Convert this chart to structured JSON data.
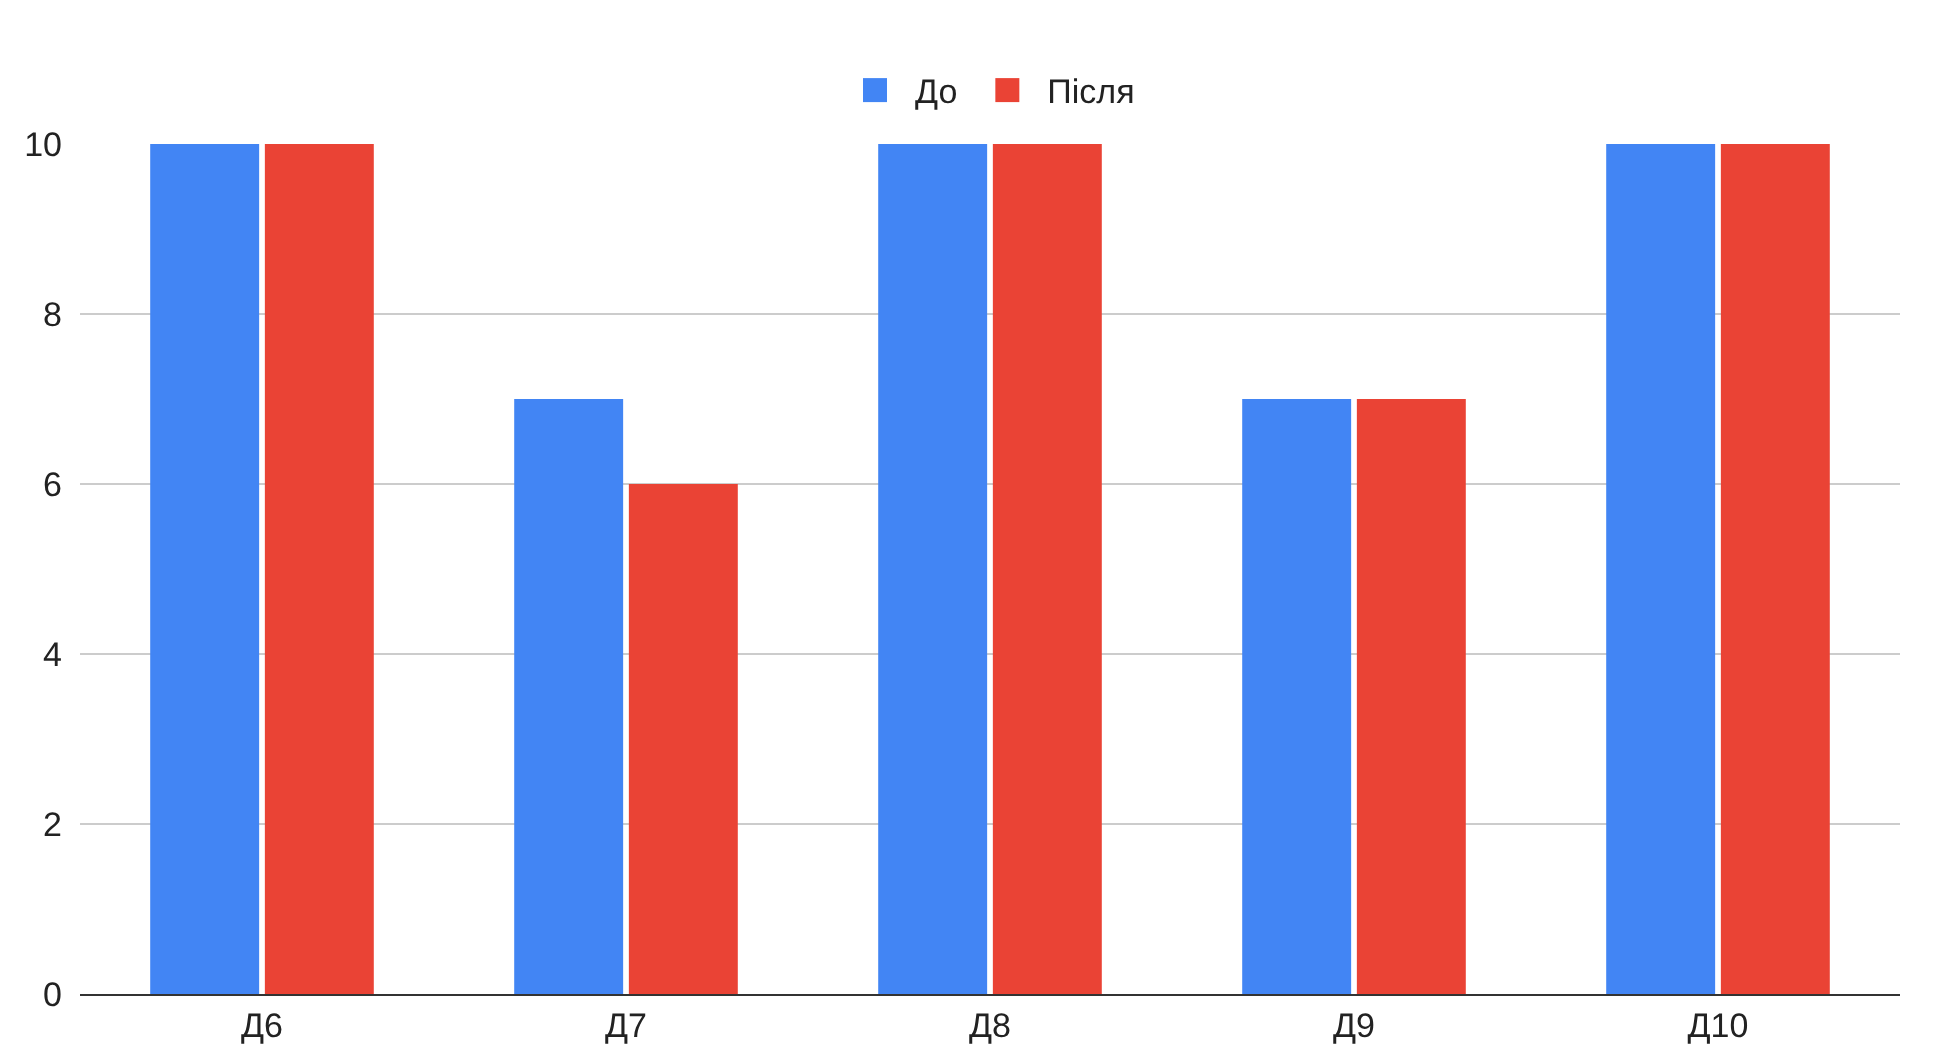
{
  "chart_data": {
    "type": "bar",
    "categories": [
      "Д6",
      "Д7",
      "Д8",
      "Д9",
      "Д10"
    ],
    "series": [
      {
        "name": "До",
        "color": "#4285f4",
        "values": [
          10,
          7,
          10,
          7,
          10
        ]
      },
      {
        "name": "Після",
        "color": "#ea4335",
        "values": [
          10,
          6,
          10,
          7,
          10
        ]
      }
    ],
    "ylim": [
      0,
      10
    ],
    "yticks": [
      0,
      2,
      4,
      6,
      8,
      10
    ],
    "grid": "y",
    "legend": "top"
  }
}
